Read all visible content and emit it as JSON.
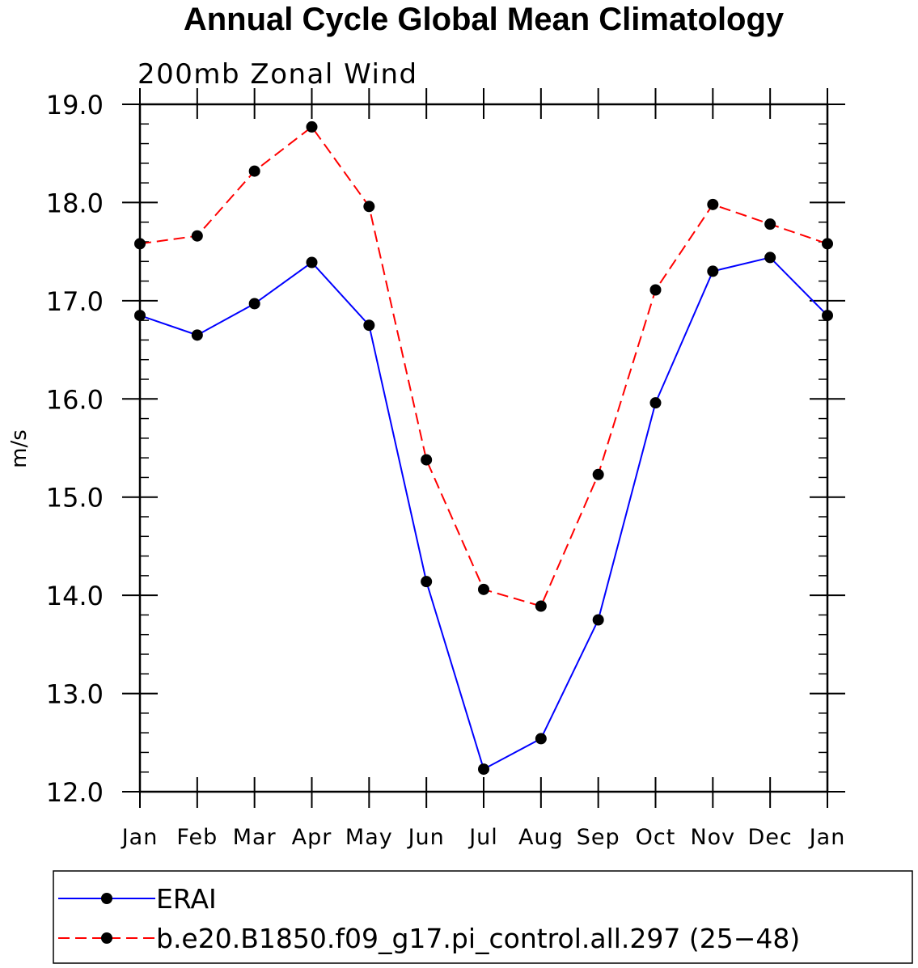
{
  "chart_data": {
    "type": "line",
    "title": "Annual Cycle Global Mean Climatology",
    "subtitle": "200mb Zonal Wind",
    "xlabel": "",
    "ylabel": "m/s",
    "categories": [
      "Jan",
      "Feb",
      "Mar",
      "Apr",
      "May",
      "Jun",
      "Jul",
      "Aug",
      "Sep",
      "Oct",
      "Nov",
      "Dec",
      "Jan"
    ],
    "ylim": [
      12.0,
      19.0
    ],
    "yticks": [
      "12.0",
      "13.0",
      "14.0",
      "15.0",
      "16.0",
      "17.0",
      "18.0",
      "19.0"
    ],
    "series": [
      {
        "name": "ERAI",
        "color": "#0000ff",
        "dash": "solid",
        "marker": "filled-circle",
        "values": [
          16.85,
          16.65,
          16.97,
          17.39,
          16.75,
          14.14,
          12.23,
          12.54,
          13.75,
          15.96,
          17.3,
          17.44,
          16.85
        ]
      },
      {
        "name": "b.e20.B1850.f09_g17.pi_control.all.297 (25−48)",
        "color": "#ff0000",
        "dash": "dashed",
        "marker": "filled-circle",
        "values": [
          17.58,
          17.66,
          18.32,
          18.77,
          17.96,
          15.38,
          14.06,
          13.89,
          15.23,
          17.11,
          17.98,
          17.78,
          17.58
        ]
      }
    ],
    "legend_position": "bottom"
  }
}
